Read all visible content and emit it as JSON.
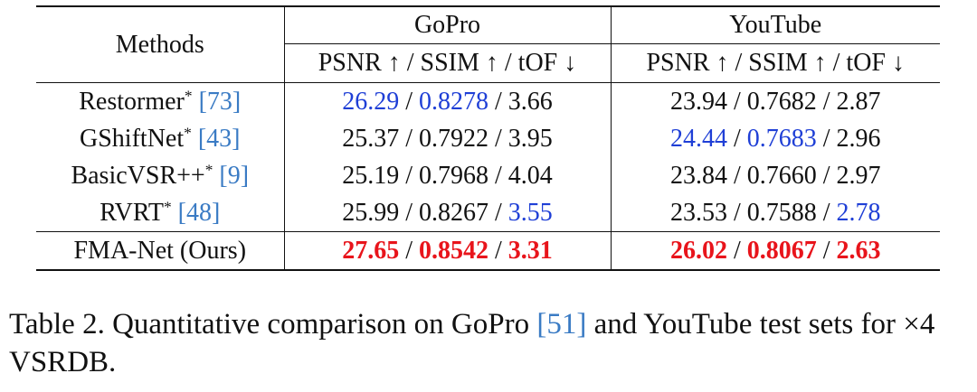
{
  "table": {
    "header": {
      "methods": "Methods",
      "gopro": "GoPro",
      "youtube": "YouTube",
      "metrics": "PSNR ↑ / SSIM ↑ / tOF ↓"
    },
    "rows": [
      {
        "name": "Restormer",
        "sup": "*",
        "ref": "[73]",
        "gopro": [
          {
            "t": "26.29",
            "s": "blue"
          },
          {
            "t": " / ",
            "s": ""
          },
          {
            "t": "0.8278",
            "s": "blue"
          },
          {
            "t": " / 3.66",
            "s": ""
          }
        ],
        "youtube": [
          {
            "t": "23.94 / 0.7682 / 2.87",
            "s": ""
          }
        ]
      },
      {
        "name": "GShiftNet",
        "sup": "*",
        "ref": "[43]",
        "gopro": [
          {
            "t": "25.37 / 0.7922 / 3.95",
            "s": ""
          }
        ],
        "youtube": [
          {
            "t": "24.44",
            "s": "blue"
          },
          {
            "t": " / ",
            "s": ""
          },
          {
            "t": "0.7683",
            "s": "blue"
          },
          {
            "t": " / 2.96",
            "s": ""
          }
        ]
      },
      {
        "name": "BasicVSR++",
        "sup": "*",
        "ref": "[9]",
        "gopro": [
          {
            "t": "25.19 / 0.7968 / 4.04",
            "s": ""
          }
        ],
        "youtube": [
          {
            "t": "23.84 / 0.7660 / 2.97",
            "s": ""
          }
        ]
      },
      {
        "name": "RVRT",
        "sup": "*",
        "ref": "[48]",
        "gopro": [
          {
            "t": "25.99 / 0.8267 / ",
            "s": ""
          },
          {
            "t": "3.55",
            "s": "blue"
          }
        ],
        "youtube": [
          {
            "t": "23.53 / 0.7588 / ",
            "s": ""
          },
          {
            "t": "2.78",
            "s": "blue"
          }
        ]
      }
    ],
    "ours": {
      "name": "FMA-Net (Ours)",
      "gopro": [
        {
          "t": "27.65",
          "s": "red"
        },
        {
          "t": " / ",
          "s": ""
        },
        {
          "t": "0.8542",
          "s": "red"
        },
        {
          "t": " / ",
          "s": ""
        },
        {
          "t": "3.31",
          "s": "red"
        }
      ],
      "youtube": [
        {
          "t": "26.02",
          "s": "red"
        },
        {
          "t": " / ",
          "s": ""
        },
        {
          "t": "0.8067",
          "s": "red"
        },
        {
          "t": " / ",
          "s": ""
        },
        {
          "t": "2.63",
          "s": "red"
        }
      ]
    }
  },
  "caption": {
    "before_ref": "Table 2. Quantitative comparison on GoPro ",
    "ref": "[51]",
    "after_ref": " and YouTube test sets for ×4 VSRDB."
  },
  "colors": {
    "second_best": "#1f3fd6",
    "best": "#e8141b",
    "citation_link": "#3a7bc4"
  }
}
